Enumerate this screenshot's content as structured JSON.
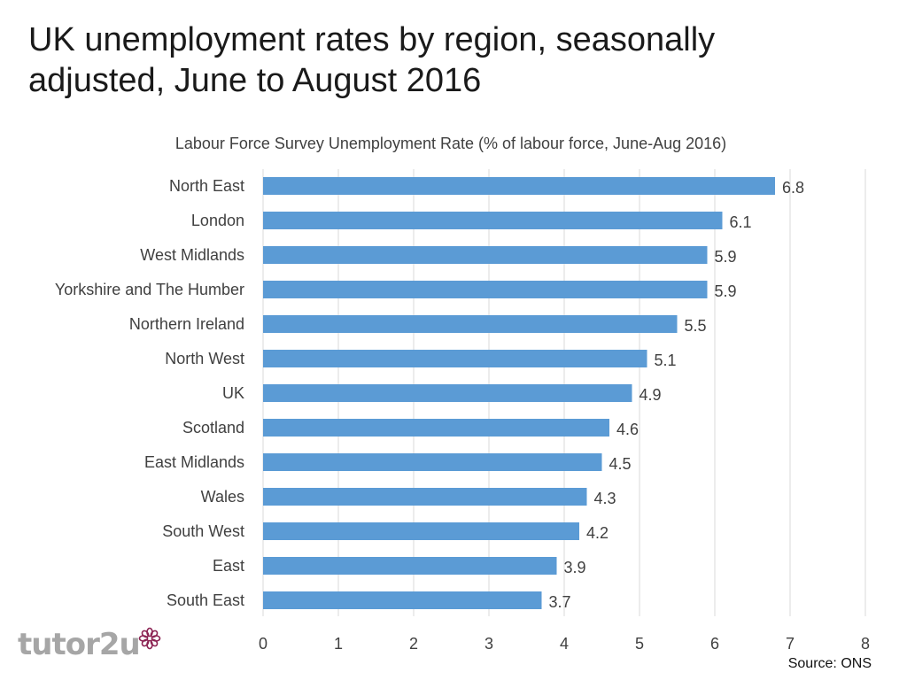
{
  "title": "UK unemployment rates by region, seasonally adjusted, June to August 2016",
  "source": "Source: ONS",
  "logo_text": "tutor2u",
  "colors": {
    "bar": "#5b9bd5",
    "grid": "#d9d9d9",
    "text": "#404040"
  },
  "chart_data": {
    "type": "bar",
    "orientation": "horizontal",
    "title": "Labour Force Survey Unemployment Rate (% of labour force, June-Aug 2016)",
    "categories": [
      "North East",
      "London",
      "West Midlands",
      "Yorkshire and The Humber",
      "Northern Ireland",
      "North West",
      "UK",
      "Scotland",
      "East Midlands",
      "Wales",
      "South West",
      "East",
      "South East"
    ],
    "values": [
      6.8,
      6.1,
      5.9,
      5.9,
      5.5,
      5.1,
      4.9,
      4.6,
      4.5,
      4.3,
      4.2,
      3.9,
      3.7
    ],
    "value_labels": [
      "6.8",
      "6.1",
      "5.9",
      "5.9",
      "5.5",
      "5.1",
      "4.9",
      "4.6",
      "4.5",
      "4.3",
      "4.2",
      "3.9",
      "3.7"
    ],
    "xlim": [
      0,
      8
    ],
    "xticks": [
      "0",
      "1",
      "2",
      "3",
      "4",
      "5",
      "6",
      "7",
      "8"
    ],
    "xlabel": "",
    "ylabel": "",
    "grid": true,
    "legend": "none"
  }
}
